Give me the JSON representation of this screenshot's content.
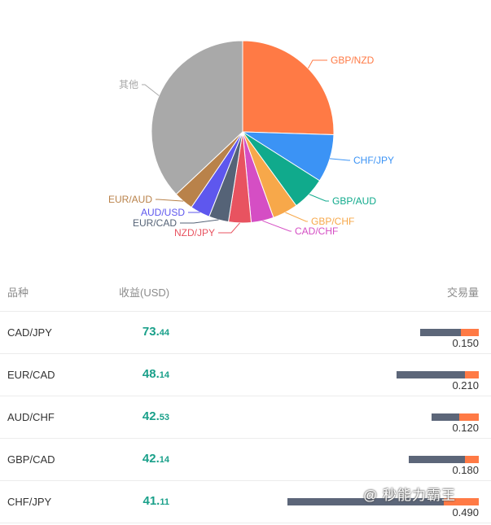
{
  "chart_data": {
    "type": "pie",
    "slices": [
      {
        "label": "GBP/NZD",
        "value": 25.5,
        "color": "#ff7a45"
      },
      {
        "label": "CHF/JPY",
        "value": 8.5,
        "color": "#3b93f5"
      },
      {
        "label": "GBP/AUD",
        "value": 6.0,
        "color": "#10aa8c"
      },
      {
        "label": "GBP/CHF",
        "value": 4.5,
        "color": "#f7a84a"
      },
      {
        "label": "CAD/CHF",
        "value": 4.0,
        "color": "#d54ec4"
      },
      {
        "label": "NZD/JPY",
        "value": 4.0,
        "color": "#e85360"
      },
      {
        "label": "EUR/CAD",
        "value": 3.5,
        "color": "#556377"
      },
      {
        "label": "AUD/USD",
        "value": 3.5,
        "color": "#5e57ee"
      },
      {
        "label": "EUR/AUD",
        "value": 3.5,
        "color": "#b9824a"
      },
      {
        "label": "其他",
        "value": 37.0,
        "color": "#a9a9a9"
      }
    ]
  },
  "table": {
    "headers": {
      "symbol": "品种",
      "profit": "收益(USD)",
      "volume": "交易量"
    },
    "rows": [
      {
        "symbol": "CAD/JPY",
        "profit_int": "73.",
        "profit_dec": "44",
        "volume": "0.150",
        "vol_gray": 0.105,
        "vol_orange": 0.045
      },
      {
        "symbol": "EUR/CAD",
        "profit_int": "48.",
        "profit_dec": "14",
        "volume": "0.210",
        "vol_gray": 0.175,
        "vol_orange": 0.035
      },
      {
        "symbol": "AUD/CHF",
        "profit_int": "42.",
        "profit_dec": "53",
        "volume": "0.120",
        "vol_gray": 0.07,
        "vol_orange": 0.05
      },
      {
        "symbol": "GBP/CAD",
        "profit_int": "42.",
        "profit_dec": "14",
        "volume": "0.180",
        "vol_gray": 0.145,
        "vol_orange": 0.035
      },
      {
        "symbol": "CHF/JPY",
        "profit_int": "41.",
        "profit_dec": "11",
        "volume": "0.490",
        "vol_gray": 0.4,
        "vol_orange": 0.09
      }
    ]
  },
  "colors": {
    "profit": "#1aa08a",
    "bar_gray": "#5c6679",
    "bar_orange": "#ff7a45"
  },
  "watermark": "@ 秒能力霸王"
}
